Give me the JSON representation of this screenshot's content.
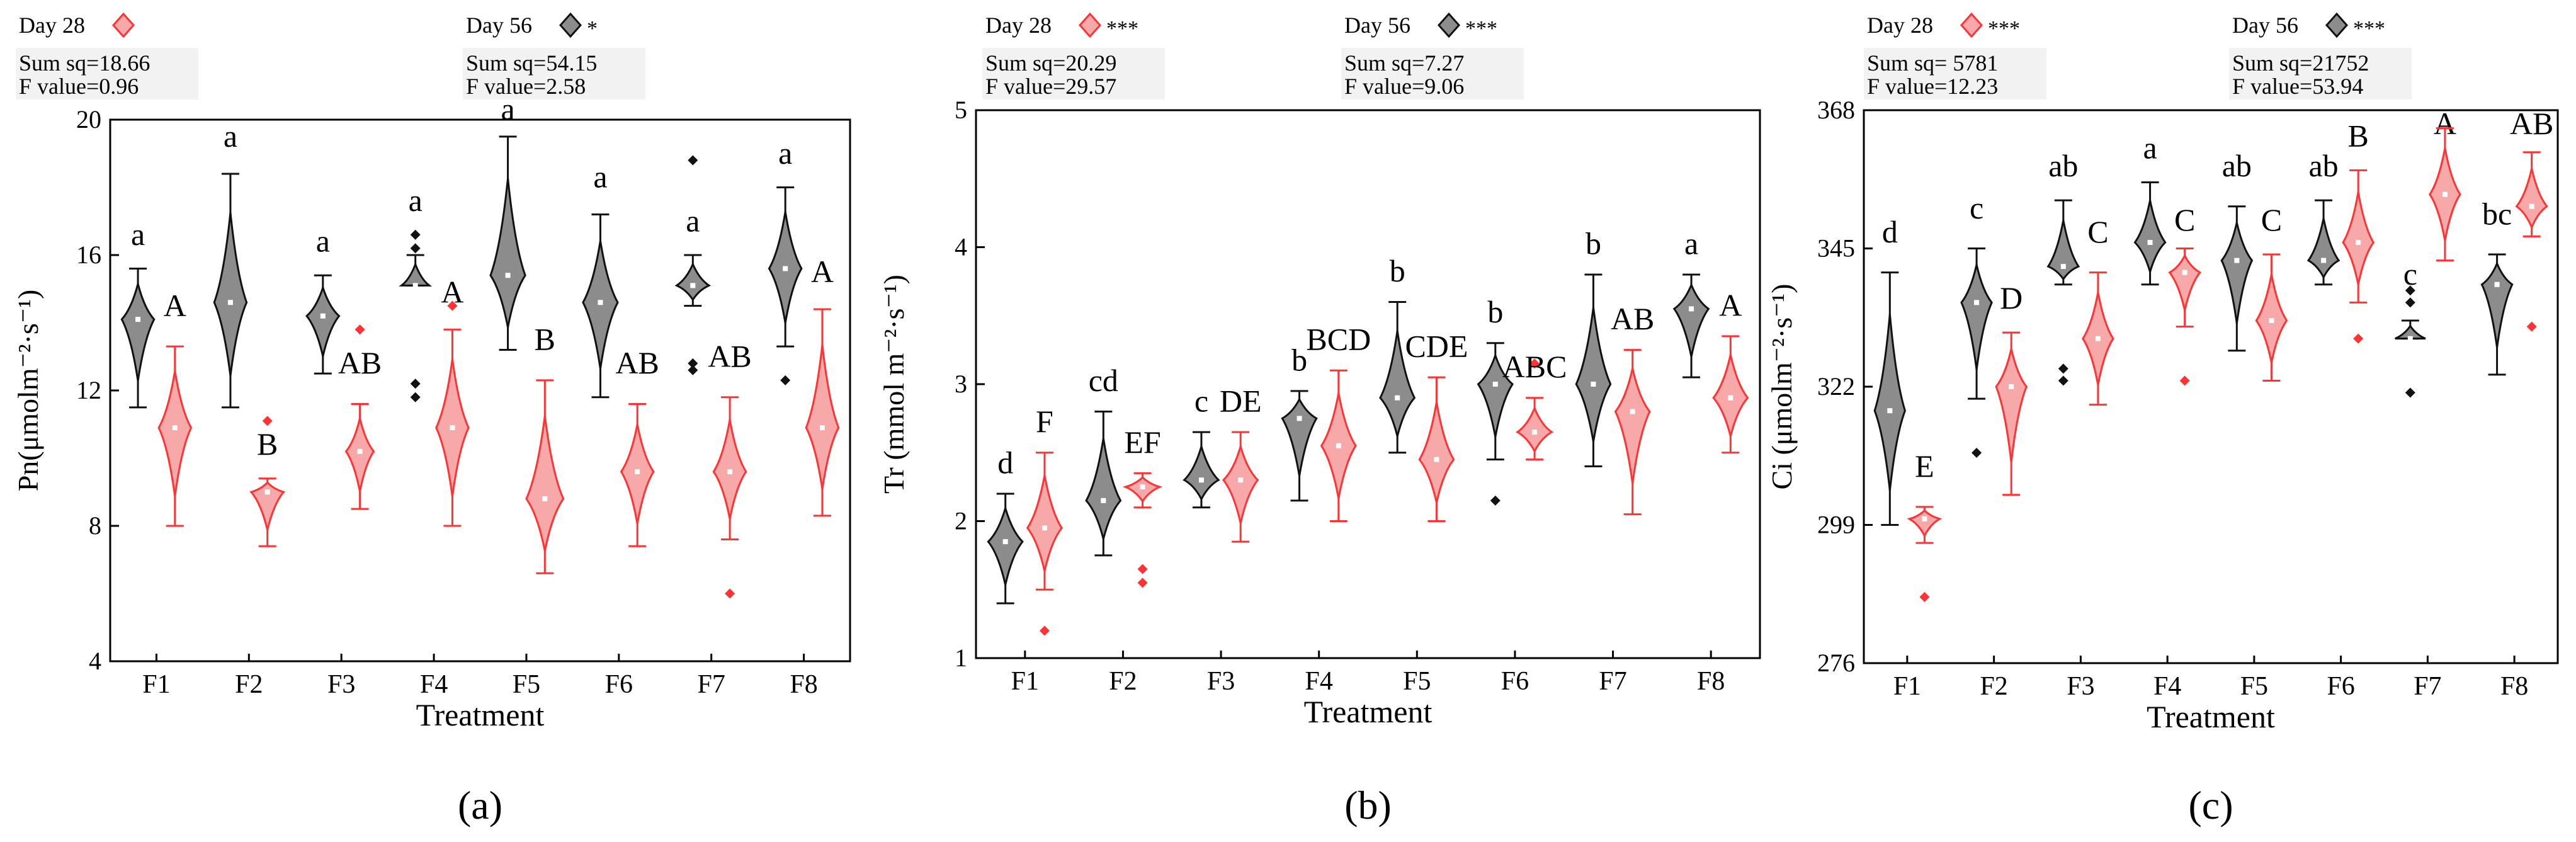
{
  "palette": {
    "day28": "#ff3333",
    "day28_fill": "#f7a8a8",
    "day56": "#111111",
    "day56_fill": "#8c8c8c"
  },
  "header_sample": "Day 28",
  "chart_data": [
    {
      "type": "violin",
      "panel_label": "(a)",
      "panel_letter": "a",
      "ylabel": "Pn(μmolm⁻²·s⁻¹)",
      "xlabel": "Treatment",
      "ylim": [
        4,
        20
      ],
      "yticks": [
        4,
        8,
        12,
        16,
        20
      ],
      "categories": [
        "F1",
        "F2",
        "F3",
        "F4",
        "F5",
        "F6",
        "F7",
        "F8"
      ],
      "stats": {
        "day28": {
          "label": "Day 28",
          "sig": "",
          "sum_sq": "Sum sq=18.66",
          "f_value": "F value=0.96"
        },
        "day56": {
          "label": "Day 56",
          "sig": "*",
          "sum_sq": "Sum sq=54.15",
          "f_value": "F value=2.58"
        }
      },
      "series": [
        {
          "name": "Day 56",
          "min": [
            11.5,
            11.5,
            12.5,
            15.1,
            13.2,
            11.8,
            14.5,
            13.3
          ],
          "max": [
            15.6,
            18.4,
            15.4,
            16.0,
            19.5,
            17.2,
            16.0,
            18.0
          ],
          "mean": [
            14.1,
            14.6,
            14.2,
            15.1,
            15.4,
            14.6,
            15.1,
            15.6
          ],
          "width": [
            0.14,
            0.14,
            0.14,
            0.12,
            0.15,
            0.15,
            0.14,
            0.14
          ],
          "outliers": [
            [],
            [],
            [],
            [
              16.6,
              16.2,
              12.2,
              11.8
            ],
            [],
            [],
            [
              18.8,
              12.8,
              12.6
            ],
            [
              12.3
            ]
          ],
          "letters": [
            "a",
            "a",
            "a",
            "a",
            "a",
            "a",
            "a",
            "a"
          ],
          "letter_values": [
            16.3,
            19.2,
            16.1,
            17.3,
            20.0,
            18.0,
            16.7,
            18.7
          ]
        },
        {
          "name": "Day 28",
          "min": [
            8.0,
            7.4,
            8.5,
            8.0,
            6.6,
            7.4,
            7.6,
            8.3
          ],
          "max": [
            13.3,
            9.4,
            11.6,
            13.8,
            12.3,
            11.6,
            11.8,
            14.4
          ],
          "mean": [
            10.9,
            9.0,
            10.2,
            10.9,
            8.8,
            9.6,
            9.6,
            10.9
          ],
          "width": [
            0.14,
            0.14,
            0.12,
            0.14,
            0.16,
            0.14,
            0.14,
            0.14
          ],
          "outliers": [
            [],
            [
              11.1
            ],
            [
              13.8
            ],
            [
              14.5
            ],
            [],
            [],
            [
              6.0
            ],
            []
          ],
          "letters": [
            "A",
            "B",
            "AB",
            "A",
            "B",
            "AB",
            "AB",
            "A"
          ],
          "letter_values": [
            14.2,
            10.1,
            12.5,
            14.6,
            13.2,
            12.5,
            12.7,
            15.2
          ]
        }
      ]
    },
    {
      "type": "violin",
      "panel_label": "(b)",
      "panel_letter": "b",
      "ylabel": "Tr (mmol m⁻²·s⁻¹)",
      "xlabel": "Treatment",
      "ylim": [
        1,
        5
      ],
      "yticks": [
        1,
        2,
        3,
        4,
        5
      ],
      "categories": [
        "F1",
        "F2",
        "F3",
        "F4",
        "F5",
        "F6",
        "F7",
        "F8"
      ],
      "stats": {
        "day28": {
          "label": "Day 28",
          "sig": "***",
          "sum_sq": "Sum sq=20.29",
          "f_value": "F value=29.57"
        },
        "day56": {
          "label": "Day 56",
          "sig": "***",
          "sum_sq": "Sum sq=7.27",
          "f_value": "F value=9.06"
        }
      },
      "series": [
        {
          "name": "Day 56",
          "min": [
            1.4,
            1.75,
            2.1,
            2.15,
            2.5,
            2.45,
            2.4,
            3.05
          ],
          "max": [
            2.2,
            2.8,
            2.65,
            2.95,
            3.6,
            3.3,
            3.8,
            3.8
          ],
          "mean": [
            1.85,
            2.15,
            2.3,
            2.75,
            2.9,
            3.0,
            3.0,
            3.55
          ],
          "width": [
            0.14,
            0.14,
            0.14,
            0.14,
            0.14,
            0.14,
            0.14,
            0.14
          ],
          "outliers": [
            [],
            [],
            [],
            [],
            [],
            [
              2.15
            ],
            [],
            []
          ],
          "letters": [
            "d",
            "cd",
            "c",
            "b",
            "b",
            "b",
            "b",
            "a"
          ],
          "letter_values": [
            2.35,
            2.95,
            2.8,
            3.1,
            3.75,
            3.45,
            3.95,
            3.95
          ],
          "note": "F7 shows two stacked labels"
        },
        {
          "name": "Day 28",
          "min": [
            1.5,
            2.1,
            1.85,
            2.0,
            2.0,
            2.45,
            2.05,
            2.5
          ],
          "max": [
            2.5,
            2.35,
            2.65,
            3.1,
            3.05,
            2.9,
            3.25,
            3.35
          ],
          "mean": [
            1.95,
            2.25,
            2.3,
            2.55,
            2.45,
            2.65,
            2.8,
            2.9
          ],
          "width": [
            0.14,
            0.14,
            0.14,
            0.14,
            0.14,
            0.14,
            0.14,
            0.14
          ],
          "outliers": [
            [
              1.2
            ],
            [
              1.65,
              1.55
            ],
            [],
            [],
            [],
            [
              3.15
            ],
            [],
            []
          ],
          "letters": [
            "F",
            "EF",
            "DE",
            "BCD",
            "CDE",
            "ABC",
            "AB",
            "A"
          ],
          "letter_values": [
            2.65,
            2.5,
            2.8,
            3.25,
            3.2,
            3.05,
            3.4,
            3.5
          ]
        }
      ]
    },
    {
      "type": "violin",
      "panel_label": "(c)",
      "panel_letter": "c",
      "ylabel": "Ci (μmolm⁻²·s⁻¹)",
      "xlabel": "Treatment",
      "ylim": [
        276,
        368
      ],
      "yticks": [
        276,
        299,
        322,
        345,
        368
      ],
      "categories": [
        "F1",
        "F2",
        "F3",
        "F4",
        "F5",
        "F6",
        "F7",
        "F8"
      ],
      "stats": {
        "day28": {
          "label": "Day 28",
          "sig": "***",
          "sum_sq": "Sum sq= 5781",
          "f_value": "F value=12.23"
        },
        "day56": {
          "label": "Day 56",
          "sig": "***",
          "sum_sq": "Sum sq=21752",
          "f_value": "F value=53.94"
        }
      },
      "series": [
        {
          "name": "Day 56",
          "min": [
            299,
            320,
            339,
            339,
            328,
            339,
            330,
            324
          ],
          "max": [
            341,
            345,
            353,
            356,
            352,
            353,
            333,
            344
          ],
          "mean": [
            318,
            336,
            342,
            346,
            343,
            343,
            330,
            339
          ],
          "width": [
            0.14,
            0.14,
            0.14,
            0.14,
            0.14,
            0.14,
            0.14,
            0.14
          ],
          "outliers": [
            [],
            [
              311
            ],
            [
              325,
              323
            ],
            [],
            [],
            [],
            [
              338,
              336,
              321
            ],
            []
          ],
          "letters": [
            "d",
            "c",
            "ab",
            "a",
            "ab",
            "ab",
            "c",
            "bc"
          ],
          "letter_values": [
            346,
            350,
            357,
            360,
            357,
            357,
            339,
            349
          ],
          "extra_letter": {
            "index": 6,
            "text": "A",
            "value": 364
          }
        },
        {
          "name": "Day 28",
          "min": [
            296,
            304,
            319,
            332,
            323,
            336,
            343,
            347
          ],
          "max": [
            302,
            331,
            341,
            345,
            344,
            358,
            365,
            361
          ],
          "mean": [
            300,
            322,
            330,
            341,
            333,
            346,
            354,
            352
          ],
          "width": [
            0.14,
            0.14,
            0.14,
            0.14,
            0.14,
            0.14,
            0.14,
            0.14
          ],
          "outliers": [
            [
              287
            ],
            [],
            [],
            [
              323
            ],
            [],
            [
              330
            ],
            [],
            [
              332
            ]
          ],
          "letters": [
            "E",
            "D",
            "C",
            "C",
            "C",
            "B",
            "",
            "AB"
          ],
          "letter_values": [
            307,
            335,
            346,
            348,
            348,
            362,
            0,
            364
          ]
        }
      ]
    }
  ]
}
